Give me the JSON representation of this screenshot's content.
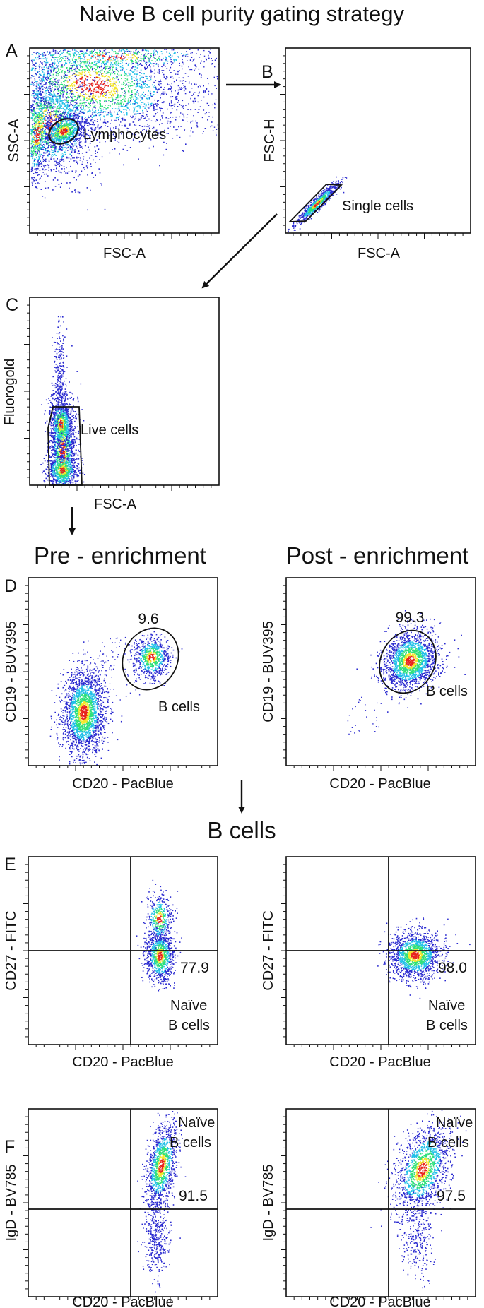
{
  "title": "Naive B cell purity gating strategy",
  "section_headers": {
    "pre": "Pre - enrichment",
    "post": "Post - enrichment",
    "bcells": "B cells"
  },
  "colors": {
    "axis": "#111111",
    "density_low": "#2a2ad0",
    "density_mid1": "#22c0e8",
    "density_mid2": "#2ee07a",
    "density_mid3": "#f3e62a",
    "density_high": "#e8221c"
  },
  "panels": {
    "A": {
      "letter": "A",
      "xlabel": "FSC-A",
      "ylabel": "SSC-A",
      "gate_label": "Lymphocytes"
    },
    "B": {
      "letter": "B",
      "xlabel": "FSC-A",
      "ylabel": "FSC-H",
      "gate_label": "Single cells"
    },
    "C": {
      "letter": "C",
      "xlabel": "FSC-A",
      "ylabel": "Fluorogold",
      "gate_label": "Live cells"
    },
    "D1": {
      "letter": "D",
      "xlabel": "CD20 - PacBlue",
      "ylabel": "CD19 - BUV395",
      "value": "9.6",
      "gate_label": "B cells"
    },
    "D2": {
      "xlabel": "CD20 - PacBlue",
      "ylabel": "CD19 - BUV395",
      "value": "99.3",
      "gate_label": "B cells"
    },
    "E1": {
      "letter": "E",
      "xlabel": "CD20 - PacBlue",
      "ylabel": "CD27 - FITC",
      "value": "77.9",
      "gate_label_1": "Naïve",
      "gate_label_2": "B cells"
    },
    "E2": {
      "xlabel": "CD20 - PacBlue",
      "ylabel": "CD27 - FITC",
      "value": "98.0",
      "gate_label_1": "Naïve",
      "gate_label_2": "B cells"
    },
    "F1": {
      "letter": "F",
      "xlabel": "CD20 - PacBlue",
      "ylabel": "IgD - BV785",
      "value": "91.5",
      "gate_label_1": "Naïve",
      "gate_label_2": "B cells"
    },
    "F2": {
      "xlabel": "CD20 - PacBlue",
      "ylabel": "IgD - BV785",
      "value": "97.5",
      "gate_label_1": "Naïve",
      "gate_label_2": "B cells"
    }
  }
}
